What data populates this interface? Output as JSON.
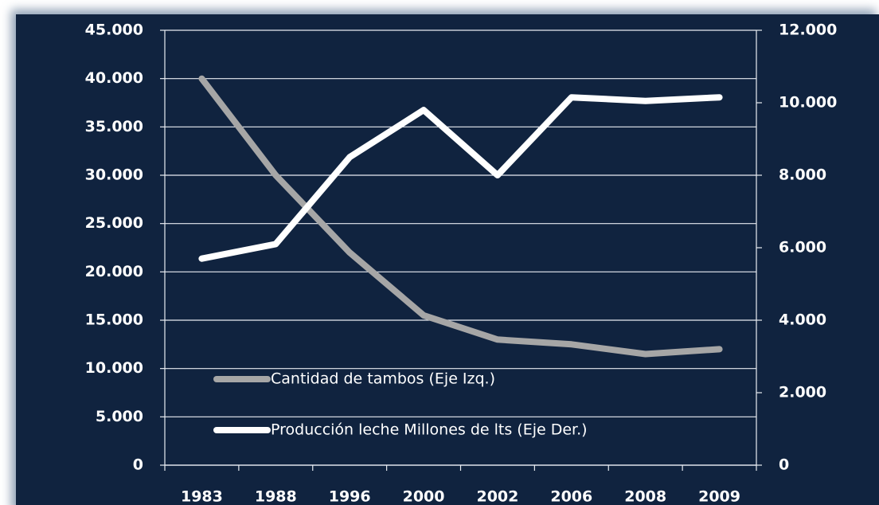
{
  "chart_data": {
    "type": "line",
    "categories": [
      "1983",
      "1988",
      "1996",
      "2000",
      "2002",
      "2006",
      "2008",
      "2009"
    ],
    "series": [
      {
        "name": "Cantidad de tambos (Eje Izq.)",
        "color": "#a6a6a6",
        "values": [
          40000,
          30000,
          22000,
          15500,
          13000,
          12500,
          11500,
          12000
        ]
      },
      {
        "name": "Producción leche Millones de lts (Eje Der.)",
        "color": "#ffffff",
        "axis": "y2",
        "values": [
          5700,
          6100,
          8500,
          9800,
          8000,
          10150,
          10050,
          10150
        ]
      }
    ],
    "ylim": [
      0,
      45000
    ],
    "yticks": [
      0,
      {
        "value": 5000,
        "label": "5.000"
      },
      {
        "value": 10000,
        "label": "10.000"
      },
      {
        "value": 15000,
        "label": "15.000"
      },
      {
        "value": 20000,
        "label": "20.000"
      },
      {
        "value": 25000,
        "label": "25.000"
      },
      {
        "value": 30000,
        "label": "30.000"
      },
      {
        "value": 35000,
        "label": "35.000"
      },
      {
        "value": 40000,
        "label": "40.000"
      },
      {
        "value": 45000,
        "label": "45.000"
      }
    ],
    "y2lim": [
      0,
      12000
    ],
    "y2ticks": [
      0,
      {
        "value": 2000,
        "label": "2.000"
      },
      {
        "value": 4000,
        "label": "4.000"
      },
      {
        "value": 6000,
        "label": "6.000"
      },
      {
        "value": 8000,
        "label": "8.000"
      },
      {
        "value": 10000,
        "label": "10.000"
      },
      {
        "value": 12000,
        "label": "12.000"
      }
    ],
    "grid": true,
    "legend": "lower-left"
  }
}
